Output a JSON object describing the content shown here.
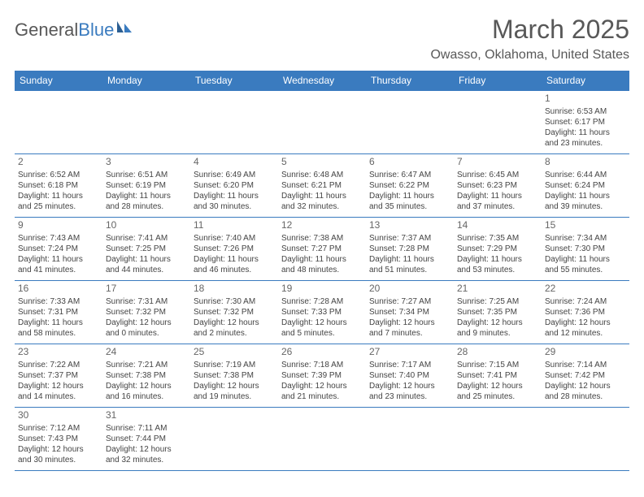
{
  "header": {
    "logo_part1": "General",
    "logo_part2": "Blue",
    "month_title": "March 2025",
    "location": "Owasso, Oklahoma, United States"
  },
  "colors": {
    "header_bg": "#3a7bbf",
    "header_text": "#ffffff",
    "border": "#3a7bbf",
    "text": "#444444",
    "daynum": "#666666",
    "title": "#585858"
  },
  "weekdays": [
    "Sunday",
    "Monday",
    "Tuesday",
    "Wednesday",
    "Thursday",
    "Friday",
    "Saturday"
  ],
  "weeks": [
    [
      null,
      null,
      null,
      null,
      null,
      null,
      {
        "d": "1",
        "sr": "Sunrise: 6:53 AM",
        "ss": "Sunset: 6:17 PM",
        "dl1": "Daylight: 11 hours",
        "dl2": "and 23 minutes."
      }
    ],
    [
      {
        "d": "2",
        "sr": "Sunrise: 6:52 AM",
        "ss": "Sunset: 6:18 PM",
        "dl1": "Daylight: 11 hours",
        "dl2": "and 25 minutes."
      },
      {
        "d": "3",
        "sr": "Sunrise: 6:51 AM",
        "ss": "Sunset: 6:19 PM",
        "dl1": "Daylight: 11 hours",
        "dl2": "and 28 minutes."
      },
      {
        "d": "4",
        "sr": "Sunrise: 6:49 AM",
        "ss": "Sunset: 6:20 PM",
        "dl1": "Daylight: 11 hours",
        "dl2": "and 30 minutes."
      },
      {
        "d": "5",
        "sr": "Sunrise: 6:48 AM",
        "ss": "Sunset: 6:21 PM",
        "dl1": "Daylight: 11 hours",
        "dl2": "and 32 minutes."
      },
      {
        "d": "6",
        "sr": "Sunrise: 6:47 AM",
        "ss": "Sunset: 6:22 PM",
        "dl1": "Daylight: 11 hours",
        "dl2": "and 35 minutes."
      },
      {
        "d": "7",
        "sr": "Sunrise: 6:45 AM",
        "ss": "Sunset: 6:23 PM",
        "dl1": "Daylight: 11 hours",
        "dl2": "and 37 minutes."
      },
      {
        "d": "8",
        "sr": "Sunrise: 6:44 AM",
        "ss": "Sunset: 6:24 PM",
        "dl1": "Daylight: 11 hours",
        "dl2": "and 39 minutes."
      }
    ],
    [
      {
        "d": "9",
        "sr": "Sunrise: 7:43 AM",
        "ss": "Sunset: 7:24 PM",
        "dl1": "Daylight: 11 hours",
        "dl2": "and 41 minutes."
      },
      {
        "d": "10",
        "sr": "Sunrise: 7:41 AM",
        "ss": "Sunset: 7:25 PM",
        "dl1": "Daylight: 11 hours",
        "dl2": "and 44 minutes."
      },
      {
        "d": "11",
        "sr": "Sunrise: 7:40 AM",
        "ss": "Sunset: 7:26 PM",
        "dl1": "Daylight: 11 hours",
        "dl2": "and 46 minutes."
      },
      {
        "d": "12",
        "sr": "Sunrise: 7:38 AM",
        "ss": "Sunset: 7:27 PM",
        "dl1": "Daylight: 11 hours",
        "dl2": "and 48 minutes."
      },
      {
        "d": "13",
        "sr": "Sunrise: 7:37 AM",
        "ss": "Sunset: 7:28 PM",
        "dl1": "Daylight: 11 hours",
        "dl2": "and 51 minutes."
      },
      {
        "d": "14",
        "sr": "Sunrise: 7:35 AM",
        "ss": "Sunset: 7:29 PM",
        "dl1": "Daylight: 11 hours",
        "dl2": "and 53 minutes."
      },
      {
        "d": "15",
        "sr": "Sunrise: 7:34 AM",
        "ss": "Sunset: 7:30 PM",
        "dl1": "Daylight: 11 hours",
        "dl2": "and 55 minutes."
      }
    ],
    [
      {
        "d": "16",
        "sr": "Sunrise: 7:33 AM",
        "ss": "Sunset: 7:31 PM",
        "dl1": "Daylight: 11 hours",
        "dl2": "and 58 minutes."
      },
      {
        "d": "17",
        "sr": "Sunrise: 7:31 AM",
        "ss": "Sunset: 7:32 PM",
        "dl1": "Daylight: 12 hours",
        "dl2": "and 0 minutes."
      },
      {
        "d": "18",
        "sr": "Sunrise: 7:30 AM",
        "ss": "Sunset: 7:32 PM",
        "dl1": "Daylight: 12 hours",
        "dl2": "and 2 minutes."
      },
      {
        "d": "19",
        "sr": "Sunrise: 7:28 AM",
        "ss": "Sunset: 7:33 PM",
        "dl1": "Daylight: 12 hours",
        "dl2": "and 5 minutes."
      },
      {
        "d": "20",
        "sr": "Sunrise: 7:27 AM",
        "ss": "Sunset: 7:34 PM",
        "dl1": "Daylight: 12 hours",
        "dl2": "and 7 minutes."
      },
      {
        "d": "21",
        "sr": "Sunrise: 7:25 AM",
        "ss": "Sunset: 7:35 PM",
        "dl1": "Daylight: 12 hours",
        "dl2": "and 9 minutes."
      },
      {
        "d": "22",
        "sr": "Sunrise: 7:24 AM",
        "ss": "Sunset: 7:36 PM",
        "dl1": "Daylight: 12 hours",
        "dl2": "and 12 minutes."
      }
    ],
    [
      {
        "d": "23",
        "sr": "Sunrise: 7:22 AM",
        "ss": "Sunset: 7:37 PM",
        "dl1": "Daylight: 12 hours",
        "dl2": "and 14 minutes."
      },
      {
        "d": "24",
        "sr": "Sunrise: 7:21 AM",
        "ss": "Sunset: 7:38 PM",
        "dl1": "Daylight: 12 hours",
        "dl2": "and 16 minutes."
      },
      {
        "d": "25",
        "sr": "Sunrise: 7:19 AM",
        "ss": "Sunset: 7:38 PM",
        "dl1": "Daylight: 12 hours",
        "dl2": "and 19 minutes."
      },
      {
        "d": "26",
        "sr": "Sunrise: 7:18 AM",
        "ss": "Sunset: 7:39 PM",
        "dl1": "Daylight: 12 hours",
        "dl2": "and 21 minutes."
      },
      {
        "d": "27",
        "sr": "Sunrise: 7:17 AM",
        "ss": "Sunset: 7:40 PM",
        "dl1": "Daylight: 12 hours",
        "dl2": "and 23 minutes."
      },
      {
        "d": "28",
        "sr": "Sunrise: 7:15 AM",
        "ss": "Sunset: 7:41 PM",
        "dl1": "Daylight: 12 hours",
        "dl2": "and 25 minutes."
      },
      {
        "d": "29",
        "sr": "Sunrise: 7:14 AM",
        "ss": "Sunset: 7:42 PM",
        "dl1": "Daylight: 12 hours",
        "dl2": "and 28 minutes."
      }
    ],
    [
      {
        "d": "30",
        "sr": "Sunrise: 7:12 AM",
        "ss": "Sunset: 7:43 PM",
        "dl1": "Daylight: 12 hours",
        "dl2": "and 30 minutes."
      },
      {
        "d": "31",
        "sr": "Sunrise: 7:11 AM",
        "ss": "Sunset: 7:44 PM",
        "dl1": "Daylight: 12 hours",
        "dl2": "and 32 minutes."
      },
      null,
      null,
      null,
      null,
      null
    ]
  ]
}
